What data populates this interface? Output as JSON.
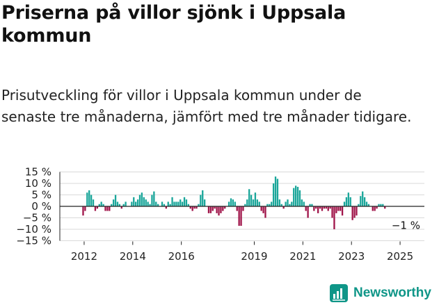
{
  "title": "Priserna på villor sjönk i Uppsala kommun",
  "subtitle": "Prisutveckling för villor i Uppsala kommun under de senaste tre månaderna, jämfört med tre månader tidigare.",
  "brand": {
    "name": "Newsworthy",
    "icon": "bar-chart-logo-icon",
    "color": "#0f9688"
  },
  "colors": {
    "positive": "#1aa69a",
    "negative": "#a0154a",
    "grid": "#d9d9d9",
    "axis": "#222222"
  },
  "chart_data": {
    "type": "bar",
    "x_unit": "month",
    "y_unit": "%",
    "ylim": [
      -15,
      15
    ],
    "yticks": [
      15,
      10,
      5,
      0,
      -5,
      -10,
      -15
    ],
    "ytick_labels": [
      "15 %",
      "10 %",
      "5 %",
      "0 %",
      "−5 %",
      "−10 %",
      "−15 %"
    ],
    "xticks": [
      "2012",
      "2014",
      "2016",
      "2019",
      "2021",
      "2023",
      "2025"
    ],
    "x_range": [
      "2011-01",
      "2025-12"
    ],
    "grid": "horizontal",
    "annotation": {
      "label": "−1 %",
      "target": "last"
    },
    "series": [
      {
        "start": "2011-12",
        "values": [
          -4,
          -2,
          6,
          7,
          5,
          3,
          -2,
          -1,
          1,
          2,
          1,
          -2,
          -2,
          -2,
          1,
          3,
          5,
          2,
          1,
          -1,
          1,
          2,
          0,
          0,
          2,
          4,
          2,
          3,
          5,
          6,
          4,
          3,
          2,
          1,
          5,
          6.5,
          2,
          1,
          0,
          2,
          1,
          -1,
          2,
          1,
          4,
          2,
          2,
          2,
          3,
          2,
          4,
          3,
          1,
          -1,
          -2,
          -1,
          -1,
          1,
          5,
          7,
          3,
          0,
          -3,
          -3,
          -2,
          -1,
          -3,
          -4,
          -3,
          -2,
          -1,
          0,
          2,
          3.5,
          3,
          2,
          -2,
          -8.5,
          -8.5,
          -2,
          1,
          3,
          7.5,
          5,
          3,
          6,
          3,
          2,
          -2,
          -3,
          -5,
          1,
          1,
          2,
          10,
          13,
          12,
          3,
          1,
          -1,
          2,
          3,
          1,
          2,
          8,
          9,
          8.5,
          7,
          3,
          2,
          -2,
          -5,
          1,
          1,
          -2,
          -1,
          -3,
          -1,
          -2,
          -1,
          -1,
          -2,
          -1,
          -5,
          -10,
          -3,
          -2,
          -2,
          -4,
          2,
          4,
          6,
          4,
          -6,
          -5,
          -4,
          1,
          4.5,
          6.5,
          4,
          2,
          1,
          0,
          -2,
          -2,
          -1,
          1,
          1,
          1,
          -1
        ]
      }
    ]
  }
}
